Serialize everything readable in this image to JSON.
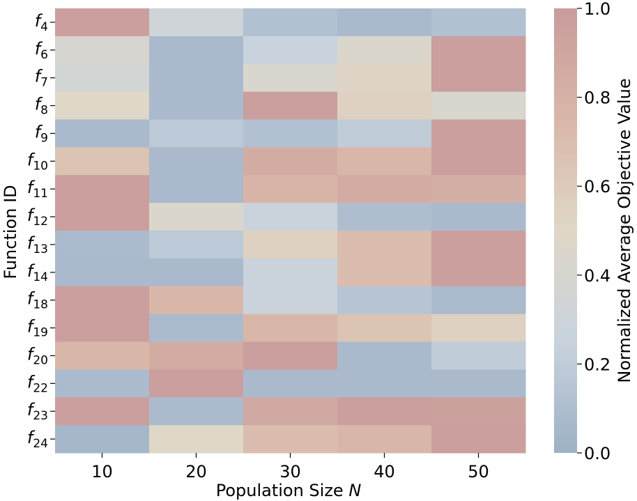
{
  "chart_data": {
    "type": "heatmap",
    "title": "",
    "xlabel": "Population Size",
    "xlabel_var": "N",
    "ylabel": "Function ID",
    "x": [
      10,
      20,
      30,
      40,
      50
    ],
    "y_prefix": "f",
    "y": [
      "4",
      "6",
      "7",
      "8",
      "9",
      "10",
      "11",
      "12",
      "13",
      "14",
      "18",
      "19",
      "20",
      "22",
      "23",
      "24"
    ],
    "values": [
      [
        0.97,
        0.32,
        0.12,
        0.07,
        0.12
      ],
      [
        0.4,
        0.07,
        0.25,
        0.45,
        0.97
      ],
      [
        0.35,
        0.07,
        0.42,
        0.52,
        0.97
      ],
      [
        0.5,
        0.07,
        0.97,
        0.55,
        0.42
      ],
      [
        0.07,
        0.18,
        0.12,
        0.2,
        0.97
      ],
      [
        0.65,
        0.07,
        0.85,
        0.75,
        0.97
      ],
      [
        0.97,
        0.07,
        0.78,
        0.85,
        0.82
      ],
      [
        0.97,
        0.45,
        0.27,
        0.1,
        0.07
      ],
      [
        0.08,
        0.18,
        0.55,
        0.7,
        0.97
      ],
      [
        0.07,
        0.07,
        0.27,
        0.7,
        0.97
      ],
      [
        0.97,
        0.75,
        0.27,
        0.15,
        0.08
      ],
      [
        0.97,
        0.08,
        0.75,
        0.65,
        0.55
      ],
      [
        0.75,
        0.85,
        0.97,
        0.07,
        0.2
      ],
      [
        0.08,
        0.97,
        0.07,
        0.07,
        0.07
      ],
      [
        0.97,
        0.08,
        0.88,
        0.97,
        0.95
      ],
      [
        0.05,
        0.5,
        0.7,
        0.75,
        0.97
      ]
    ],
    "colorbar": {
      "label": "Normalized Average Objective Value",
      "min": 0.0,
      "max": 1.0,
      "ticks": [
        "0.0",
        "0.2",
        "0.4",
        "0.6",
        "0.8",
        "1.0"
      ],
      "colormap": [
        "#9eb0c5",
        "#c8d3dd",
        "#dfd7c7",
        "#d9b7a8",
        "#c89c9c"
      ]
    }
  }
}
